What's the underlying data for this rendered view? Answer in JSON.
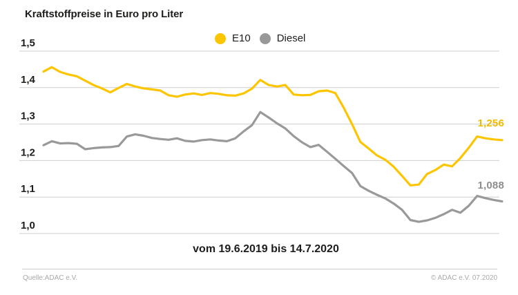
{
  "chart_data": {
    "type": "line",
    "title": "Kraftstoffpreise in Euro pro Liter",
    "x_range_label": "vom 19.6.2019 bis 14.7.2020",
    "xlabel": "",
    "ylabel": "Euro pro Liter",
    "ylim": [
      1.0,
      1.5
    ],
    "grid": true,
    "grid_color": "#cdcdcd",
    "legend_position": "top-center",
    "x_unit": "week",
    "x_start": "19.6.2019",
    "x_end": "14.7.2020",
    "yticks": [
      {
        "label": "1,5",
        "value": 1.5
      },
      {
        "label": "1,4",
        "value": 1.4
      },
      {
        "label": "1,3",
        "value": 1.3
      },
      {
        "label": "1,2",
        "value": 1.2
      },
      {
        "label": "1,1",
        "value": 1.1
      },
      {
        "label": "1,0",
        "value": 1.0
      }
    ],
    "series": [
      {
        "name": "E10",
        "color": "#fdc500",
        "label_color": "#f0ba00",
        "end_label": "1,256",
        "end_value": 1.256,
        "values": [
          1.444,
          1.456,
          1.443,
          1.436,
          1.431,
          1.419,
          1.407,
          1.398,
          1.387,
          1.399,
          1.41,
          1.403,
          1.398,
          1.395,
          1.392,
          1.379,
          1.375,
          1.381,
          1.384,
          1.38,
          1.385,
          1.383,
          1.379,
          1.378,
          1.384,
          1.397,
          1.421,
          1.407,
          1.403,
          1.407,
          1.381,
          1.379,
          1.38,
          1.39,
          1.392,
          1.385,
          1.345,
          1.3,
          1.251,
          1.233,
          1.214,
          1.202,
          1.183,
          1.158,
          1.132,
          1.134,
          1.163,
          1.174,
          1.189,
          1.184,
          1.207,
          1.235,
          1.266,
          1.261,
          1.258,
          1.256
        ]
      },
      {
        "name": "Diesel",
        "color": "#999999",
        "label_color": "#8d8d8d",
        "end_label": "1,088",
        "end_value": 1.088,
        "values": [
          1.242,
          1.253,
          1.247,
          1.248,
          1.246,
          1.231,
          1.234,
          1.236,
          1.237,
          1.24,
          1.266,
          1.272,
          1.268,
          1.262,
          1.259,
          1.257,
          1.261,
          1.254,
          1.252,
          1.256,
          1.258,
          1.255,
          1.253,
          1.261,
          1.28,
          1.297,
          1.333,
          1.318,
          1.302,
          1.288,
          1.267,
          1.25,
          1.237,
          1.243,
          1.224,
          1.205,
          1.185,
          1.166,
          1.13,
          1.117,
          1.106,
          1.096,
          1.082,
          1.065,
          1.037,
          1.032,
          1.036,
          1.043,
          1.053,
          1.065,
          1.057,
          1.076,
          1.103,
          1.097,
          1.092,
          1.088
        ]
      }
    ]
  },
  "footer": {
    "source": "Quelle:ADAC e.V.",
    "copyright": "© ADAC e.V. 07.2020"
  },
  "text_color": "#1d1d1b"
}
